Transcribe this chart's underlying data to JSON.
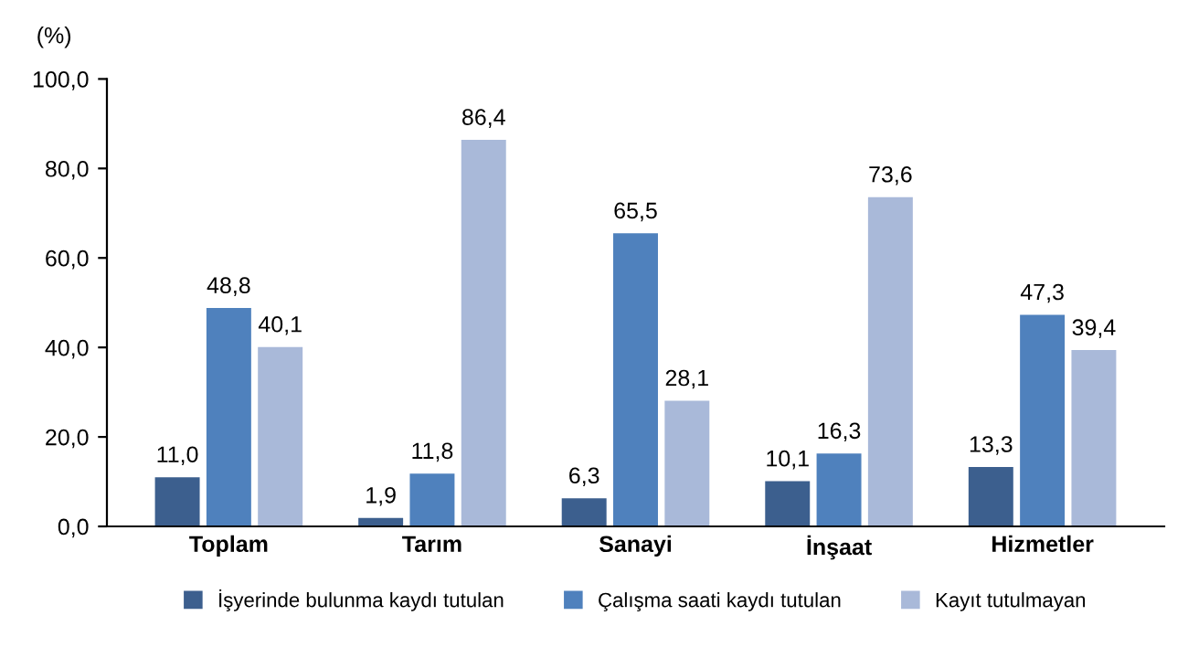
{
  "chart_data": {
    "type": "bar",
    "ylabel": "(%)",
    "categories": [
      "Toplam",
      "Tarım",
      "Sanayi",
      "İnşaat",
      "Hizmetler"
    ],
    "series": [
      {
        "name": "İşyerinde bulunma kaydı tutulan",
        "color": "#3c5f8e",
        "values": [
          11.0,
          1.9,
          6.3,
          10.1,
          13.3
        ],
        "value_labels": [
          "11,0",
          "1,9",
          "6,3",
          "10,1",
          "13,3"
        ]
      },
      {
        "name": "Çalışma saati kaydı tutulan",
        "color": "#4f81bd",
        "values": [
          48.8,
          11.8,
          65.5,
          16.3,
          47.3
        ],
        "value_labels": [
          "48,8",
          "11,8",
          "65,5",
          "16,3",
          "47,3"
        ]
      },
      {
        "name": "Kayıt tutulmayan",
        "color": "#a9b9d9",
        "values": [
          40.1,
          86.4,
          28.1,
          73.6,
          39.4
        ],
        "value_labels": [
          "40,1",
          "86,4",
          "28,1",
          "73,6",
          "39,4"
        ]
      }
    ],
    "ylim": [
      0,
      100
    ],
    "yticks": [
      {
        "value": 0,
        "label": "0,0"
      },
      {
        "value": 20,
        "label": "20,0"
      },
      {
        "value": 40,
        "label": "40,0"
      },
      {
        "value": 60,
        "label": "60,0"
      },
      {
        "value": 80,
        "label": "80,0"
      },
      {
        "value": 100,
        "label": "100,0"
      }
    ],
    "legend": "bottom"
  }
}
